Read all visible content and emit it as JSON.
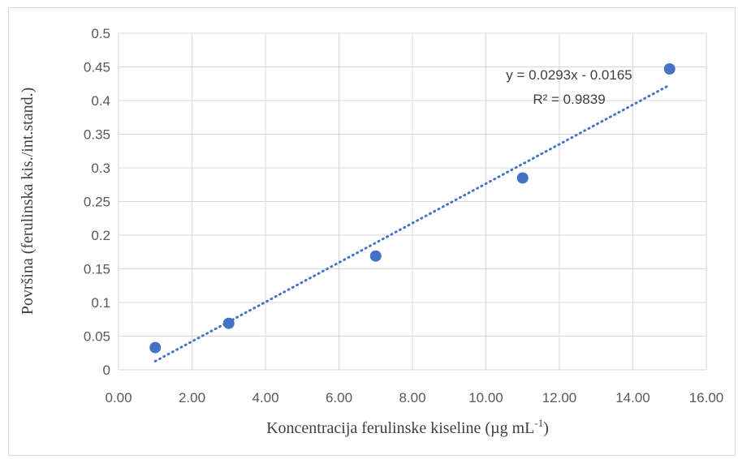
{
  "chart_data": {
    "type": "scatter",
    "title": "",
    "xlabel": "Koncentracija ferulinske kiseline (µg mL",
    "xlabel_superscript": "-1",
    "xlabel_suffix": ")",
    "ylabel": "Površina (ferulinska kis./int.stand.)",
    "xlim": [
      0,
      16
    ],
    "ylim": [
      0,
      0.5
    ],
    "x_ticks": [
      "0.00",
      "2.00",
      "4.00",
      "6.00",
      "8.00",
      "10.00",
      "12.00",
      "14.00",
      "16.00"
    ],
    "y_ticks": [
      "0",
      "0.05",
      "0.1",
      "0.15",
      "0.2",
      "0.25",
      "0.3",
      "0.35",
      "0.4",
      "0.45",
      "0.5"
    ],
    "grid": true,
    "series": [
      {
        "x": [
          1,
          3,
          7,
          11,
          15
        ],
        "y": [
          0.033,
          0.069,
          0.169,
          0.285,
          0.447
        ],
        "color": "#4472C4"
      }
    ],
    "trendline": {
      "type": "linear",
      "slope": 0.0293,
      "intercept": -0.0165,
      "x_range": [
        1,
        15
      ],
      "style": "dotted",
      "color": "#4472C4"
    },
    "annotations": {
      "equation": "y = 0.0293x - 0.0165",
      "r_squared": "R² = 0.9839"
    }
  }
}
